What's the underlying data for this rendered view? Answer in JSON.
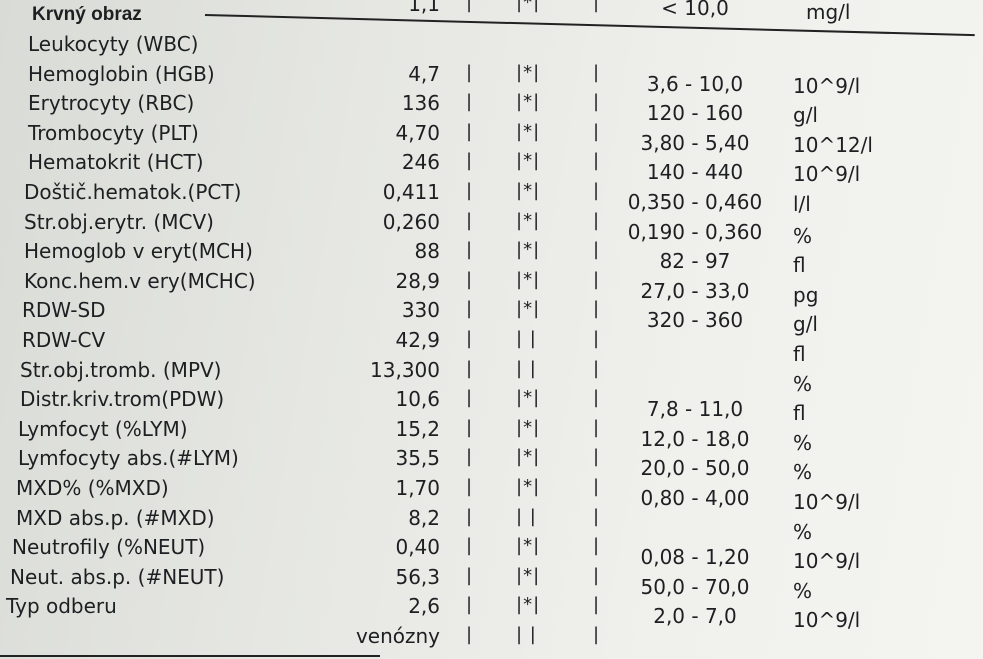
{
  "section_title": "Krvný obraz",
  "header_row": {
    "value": "1,1",
    "bar1": "|",
    "flag": "|*|",
    "bar2": "|",
    "ref": "< 10,0",
    "unit": "mg/l"
  },
  "rows": [
    {
      "name": "Leukocyty (WBC)",
      "value": "",
      "bar1": "",
      "flag": "",
      "bar2": "",
      "ref": "",
      "unit": ""
    },
    {
      "name": "Hemoglobin (HGB)",
      "value": "4,7",
      "bar1": "|",
      "flag": "|*|",
      "bar2": "|",
      "ref": "3,6 - 10,0",
      "unit": "10^9/l"
    },
    {
      "name": "Erytrocyty (RBC)",
      "value": "136",
      "bar1": "|",
      "flag": "|*|",
      "bar2": "|",
      "ref": "120 - 160",
      "unit": "g/l"
    },
    {
      "name": "Trombocyty (PLT)",
      "value": "4,70",
      "bar1": "|",
      "flag": "|*|",
      "bar2": "|",
      "ref": "3,80 - 5,40",
      "unit": "10^12/l"
    },
    {
      "name": "Hematokrit (HCT)",
      "value": "246",
      "bar1": "|",
      "flag": "|*|",
      "bar2": "|",
      "ref": "140 - 440",
      "unit": "10^9/l"
    },
    {
      "name": "Doštič.hematok.(PCT)",
      "value": "0,411",
      "bar1": "|",
      "flag": "|*|",
      "bar2": "|",
      "ref": "0,350 - 0,460",
      "unit": "l/l"
    },
    {
      "name": "Str.obj.erytr. (MCV)",
      "value": "0,260",
      "bar1": "|",
      "flag": "|*|",
      "bar2": "|",
      "ref": "0,190 - 0,360",
      "unit": "%"
    },
    {
      "name": "Hemoglob v eryt(MCH)",
      "value": "88",
      "bar1": "|",
      "flag": "|*|",
      "bar2": "|",
      "ref": "82 - 97",
      "unit": "fl"
    },
    {
      "name": "Konc.hem.v ery(MCHC)",
      "value": "28,9",
      "bar1": "|",
      "flag": "|*|",
      "bar2": "|",
      "ref": "27,0 - 33,0",
      "unit": "pg"
    },
    {
      "name": "RDW-SD",
      "value": "330",
      "bar1": "|",
      "flag": "|*|",
      "bar2": "|",
      "ref": "320 - 360",
      "unit": "g/l"
    },
    {
      "name": "RDW-CV",
      "value": "42,9",
      "bar1": "|",
      "flag": "| |",
      "bar2": "|",
      "ref": "",
      "unit": "fl"
    },
    {
      "name": "Str.obj.tromb. (MPV)",
      "value": "13,300",
      "bar1": "|",
      "flag": "| |",
      "bar2": "|",
      "ref": "",
      "unit": "%"
    },
    {
      "name": "Distr.kriv.trom(PDW)",
      "value": "10,6",
      "bar1": "|",
      "flag": "|*|",
      "bar2": "|",
      "ref": "7,8 - 11,0",
      "unit": "fl"
    },
    {
      "name": "Lymfocyt (%LYM)",
      "value": "15,2",
      "bar1": "|",
      "flag": "|*|",
      "bar2": "|",
      "ref": "12,0 - 18,0",
      "unit": "%"
    },
    {
      "name": "Lymfocyty abs.(#LYM)",
      "value": "35,5",
      "bar1": "|",
      "flag": "|*|",
      "bar2": "|",
      "ref": "20,0 - 50,0",
      "unit": "%"
    },
    {
      "name": "MXD% (%MXD)",
      "value": "1,70",
      "bar1": "|",
      "flag": "|*|",
      "bar2": "|",
      "ref": "0,80 - 4,00",
      "unit": "10^9/l"
    },
    {
      "name": "MXD abs.p. (#MXD)",
      "value": "8,2",
      "bar1": "|",
      "flag": "| |",
      "bar2": "|",
      "ref": "",
      "unit": "%"
    },
    {
      "name": "Neutrofily (%NEUT)",
      "value": "0,40",
      "bar1": "|",
      "flag": "|*|",
      "bar2": "|",
      "ref": "0,08 - 1,20",
      "unit": "10^9/l"
    },
    {
      "name": "Neut. abs.p. (#NEUT)",
      "value": "56,3",
      "bar1": "|",
      "flag": "|*|",
      "bar2": "|",
      "ref": "50,0 - 70,0",
      "unit": "%"
    },
    {
      "name": "Typ odberu",
      "value": "2,6",
      "bar1": "|",
      "flag": "|*|",
      "bar2": "|",
      "ref": "2,0 - 7,0",
      "unit": "10^9/l"
    },
    {
      "name": "",
      "value": "venózny",
      "bar1": "|",
      "flag": "| |",
      "bar2": "|",
      "ref": "",
      "unit": ""
    }
  ]
}
